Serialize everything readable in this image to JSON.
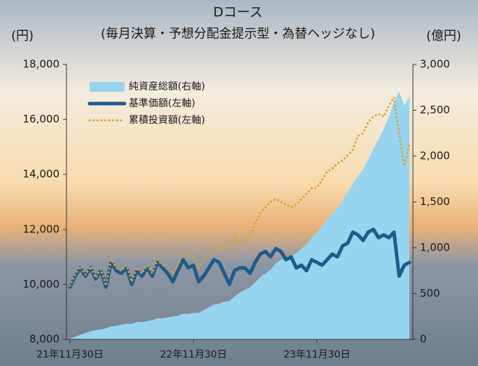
{
  "chart_data": {
    "type": "combo",
    "title": "Dコース",
    "subtitle": "(毎月決算・予想分配金提示型・為替ヘッジなし)",
    "y_label": "(円)",
    "y2_label": "(億円)",
    "categories": [
      "21年11月30日",
      null,
      null,
      null,
      null,
      null,
      null,
      null,
      null,
      null,
      null,
      null,
      null,
      null,
      null,
      null,
      null,
      null,
      null,
      null,
      null,
      null,
      null,
      null,
      "22年11月30日",
      null,
      null,
      null,
      null,
      null,
      null,
      null,
      null,
      null,
      null,
      null,
      null,
      null,
      null,
      null,
      null,
      null,
      null,
      null,
      null,
      null,
      null,
      null,
      "23年11月30日",
      null,
      null,
      null,
      null,
      null,
      null,
      null,
      null,
      null,
      null,
      null,
      null,
      null,
      null,
      null,
      null,
      null,
      null
    ],
    "ylim": [
      8000,
      18000
    ],
    "yticks": [
      {
        "value": 8000,
        "label": "8,000"
      },
      {
        "value": 10000,
        "label": "10,000"
      },
      {
        "value": 12000,
        "label": "12,000"
      },
      {
        "value": 14000,
        "label": "14,000"
      },
      {
        "value": 16000,
        "label": "16,000"
      },
      {
        "value": 18000,
        "label": "18,000"
      }
    ],
    "y2lim": [
      0,
      3000
    ],
    "y2ticks": [
      0,
      500,
      {
        "value": 1000,
        "label": "1,000"
      },
      {
        "value": 1500,
        "label": "1,500"
      },
      {
        "value": 2000,
        "label": "2,000"
      },
      {
        "value": 2500,
        "label": "2,500"
      },
      {
        "value": 3000,
        "label": "3,000"
      }
    ],
    "series": [
      {
        "name": "純資産総額(右軸)",
        "type": "area",
        "axis": "y2",
        "color": "#97d4ef",
        "values": [
          10,
          30,
          50,
          70,
          90,
          100,
          110,
          120,
          140,
          150,
          160,
          170,
          170,
          190,
          190,
          200,
          210,
          230,
          230,
          240,
          250,
          260,
          280,
          280,
          290,
          290,
          320,
          350,
          380,
          390,
          410,
          420,
          470,
          510,
          540,
          570,
          620,
          680,
          720,
          760,
          830,
          870,
          880,
          910,
          940,
          990,
          1040,
          1110,
          1170,
          1230,
          1310,
          1370,
          1430,
          1520,
          1600,
          1700,
          1780,
          1860,
          1960,
          2080,
          2180,
          2300,
          2420,
          2600,
          2700,
          2550,
          2650
        ]
      },
      {
        "name": "基準価額(左軸)",
        "type": "line",
        "color": "#1f5b8a",
        "values": [
          9900,
          10300,
          10600,
          10300,
          10600,
          10200,
          10500,
          9900,
          10800,
          10500,
          10400,
          10600,
          10000,
          10500,
          10300,
          10600,
          10300,
          10800,
          10600,
          10400,
          10100,
          10500,
          10900,
          10600,
          10700,
          10100,
          10300,
          10600,
          10900,
          10800,
          10400,
          10000,
          10500,
          10600,
          10600,
          10400,
          10800,
          11100,
          11200,
          11000,
          11300,
          11200,
          10900,
          11000,
          10600,
          10700,
          10500,
          10900,
          10800,
          10700,
          10900,
          11100,
          11000,
          11400,
          11500,
          11900,
          11800,
          11600,
          11900,
          12000,
          11700,
          11800,
          11700,
          11900,
          10300,
          10700,
          10800
        ]
      },
      {
        "name": "累積投資額(左軸)",
        "type": "line",
        "line_style": "dotted",
        "color": "#d9a232",
        "values": [
          9950,
          10350,
          10650,
          10350,
          10650,
          10250,
          10550,
          9950,
          10900,
          10600,
          10500,
          10700,
          10100,
          10600,
          10400,
          10700,
          10400,
          10900,
          10700,
          10700,
          10400,
          10700,
          11200,
          11100,
          11000,
          10600,
          10900,
          11100,
          11300,
          11400,
          11300,
          11400,
          11800,
          11500,
          11600,
          11800,
          12200,
          12600,
          12800,
          13000,
          13100,
          13000,
          12900,
          12800,
          12900,
          13100,
          13300,
          13500,
          13500,
          13800,
          14100,
          14200,
          14400,
          14500,
          14700,
          14900,
          15400,
          15500,
          15900,
          16100,
          16200,
          16100,
          16500,
          16800,
          15500,
          14300,
          15100
        ]
      }
    ],
    "grid": false
  }
}
